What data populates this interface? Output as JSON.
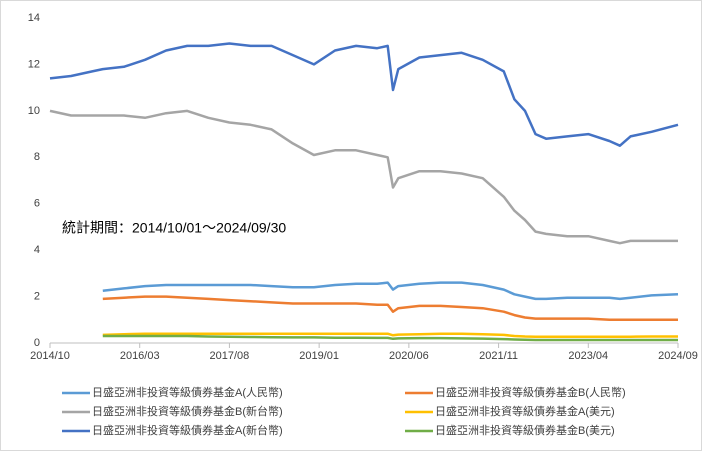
{
  "chart_data": {
    "type": "line",
    "annotation": "統計期間：2014/10/01～2024/09/30",
    "x": [
      "2014/10",
      "2015/02",
      "2015/06",
      "2015/08",
      "2015/12",
      "2016/04",
      "2016/08",
      "2016/12",
      "2017/04",
      "2017/08",
      "2017/12",
      "2018/04",
      "2018/08",
      "2018/12",
      "2019/04",
      "2019/08",
      "2019/12",
      "2020/02",
      "2020/03",
      "2020/04",
      "2020/08",
      "2020/12",
      "2021/04",
      "2021/08",
      "2021/12",
      "2022/02",
      "2022/04",
      "2022/06",
      "2022/08",
      "2022/12",
      "2023/04",
      "2023/08",
      "2023/10",
      "2023/12",
      "2024/04",
      "2024/09"
    ],
    "xlim": [
      "2014/10",
      "2024/09"
    ],
    "xticks": [
      "2014/10",
      "2016/03",
      "2017/08",
      "2019/01",
      "2020/06",
      "2021/11",
      "2023/04",
      "2024/09"
    ],
    "ylim": [
      0,
      14
    ],
    "yticks": [
      0,
      2,
      4,
      6,
      8,
      10,
      12,
      14
    ],
    "legend": "bottom",
    "series": [
      {
        "name": "日盛亞洲非投資等級債券基金A(人民幣)",
        "color": "#5b9bd5",
        "values": [
          null,
          null,
          null,
          2.25,
          2.35,
          2.45,
          2.5,
          2.5,
          2.5,
          2.5,
          2.5,
          2.45,
          2.4,
          2.4,
          2.5,
          2.55,
          2.55,
          2.6,
          2.3,
          2.45,
          2.55,
          2.6,
          2.6,
          2.5,
          2.3,
          2.1,
          2.0,
          1.9,
          1.9,
          1.95,
          1.95,
          1.95,
          1.9,
          1.95,
          2.05,
          2.1
        ]
      },
      {
        "name": "日盛亞洲非投資等級債券基金B(人民幣)",
        "color": "#ed7d31",
        "values": [
          null,
          null,
          null,
          1.9,
          1.95,
          2.0,
          2.0,
          1.95,
          1.9,
          1.85,
          1.8,
          1.75,
          1.7,
          1.7,
          1.7,
          1.7,
          1.65,
          1.65,
          1.35,
          1.5,
          1.6,
          1.6,
          1.55,
          1.5,
          1.35,
          1.2,
          1.1,
          1.05,
          1.05,
          1.05,
          1.05,
          1.0,
          1.0,
          1.0,
          1.0,
          1.0
        ]
      },
      {
        "name": "日盛亞洲非投資等級債券基金B(新台幣)",
        "color": "#a5a5a5",
        "values": [
          10.0,
          9.8,
          9.8,
          9.8,
          9.8,
          9.7,
          9.9,
          10.0,
          9.7,
          9.5,
          9.4,
          9.2,
          8.6,
          8.1,
          8.3,
          8.3,
          8.1,
          8.0,
          6.7,
          7.1,
          7.4,
          7.4,
          7.3,
          7.1,
          6.3,
          5.7,
          5.3,
          4.8,
          4.7,
          4.6,
          4.6,
          4.4,
          4.3,
          4.4,
          4.4,
          4.4
        ]
      },
      {
        "name": "日盛亞洲非投資等級債券基金A(美元)",
        "color": "#ffc000",
        "values": [
          null,
          null,
          null,
          0.35,
          0.38,
          0.4,
          0.4,
          0.4,
          0.4,
          0.4,
          0.4,
          0.4,
          0.4,
          0.4,
          0.4,
          0.4,
          0.4,
          0.4,
          0.33,
          0.36,
          0.38,
          0.4,
          0.4,
          0.38,
          0.35,
          0.3,
          0.28,
          0.27,
          0.27,
          0.27,
          0.27,
          0.27,
          0.27,
          0.27,
          0.28,
          0.28
        ]
      },
      {
        "name": "日盛亞洲非投資等級債券基金A(新台幣)",
        "color": "#4472c4",
        "values": [
          11.4,
          11.5,
          11.7,
          11.8,
          11.9,
          12.2,
          12.6,
          12.8,
          12.8,
          12.9,
          12.8,
          12.8,
          12.4,
          12.0,
          12.6,
          12.8,
          12.7,
          12.8,
          10.9,
          11.8,
          12.3,
          12.4,
          12.5,
          12.2,
          11.7,
          10.5,
          10.0,
          9.0,
          8.8,
          8.9,
          9.0,
          8.7,
          8.5,
          8.9,
          9.1,
          9.4
        ]
      },
      {
        "name": "日盛亞洲非投資等級債券基金B(美元)",
        "color": "#70ad47",
        "values": [
          null,
          null,
          null,
          0.3,
          0.3,
          0.3,
          0.3,
          0.3,
          0.28,
          0.27,
          0.26,
          0.25,
          0.24,
          0.24,
          0.23,
          0.23,
          0.22,
          0.22,
          0.18,
          0.2,
          0.21,
          0.21,
          0.2,
          0.19,
          0.17,
          0.15,
          0.14,
          0.13,
          0.13,
          0.13,
          0.13,
          0.13,
          0.13,
          0.13,
          0.13,
          0.13
        ]
      }
    ]
  }
}
